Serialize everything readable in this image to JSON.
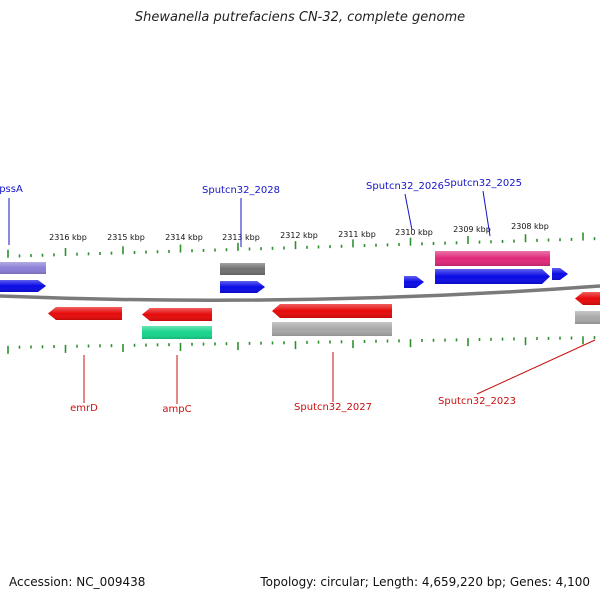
{
  "title": "Shewanella putrefaciens CN-32, complete genome",
  "footer": {
    "accession": "Accession: NC_009438",
    "summary": "Topology: circular; Length: 4,659,220 bp; Genes: 4,100"
  },
  "colors": {
    "backbone": "#7a7a7a",
    "tick": "#2f8f2f",
    "forward_label": "#1515c8",
    "reverse_label": "#c80f0f",
    "cds_forward": "#0a0ae6",
    "cds_reverse": "#e60a0a",
    "rna_forward": "#8a7fd6",
    "rna_forward_2": "#707070",
    "pseudo_forward": "#e0287a",
    "gray_feature": "#a8a8a8",
    "teal_feature": "#17d58c"
  },
  "scale_labels": [
    "2316 kbp",
    "2315 kbp",
    "2314 kbp",
    "2313 kbp",
    "2312 kbp",
    "2311 kbp",
    "2310 kbp",
    "2309 kbp",
    "2308 kbp"
  ],
  "gene_labels": {
    "pssA": "pssA",
    "sputcn32_2028": "Sputcn32_2028",
    "sputcn32_2026": "Sputcn32_2026",
    "sputcn32_2025": "Sputcn32_2025",
    "emrD": "emrD",
    "ampC": "ampC",
    "sputcn32_2027": "Sputcn32_2027",
    "sputcn32_2023": "Sputcn32_2023"
  }
}
